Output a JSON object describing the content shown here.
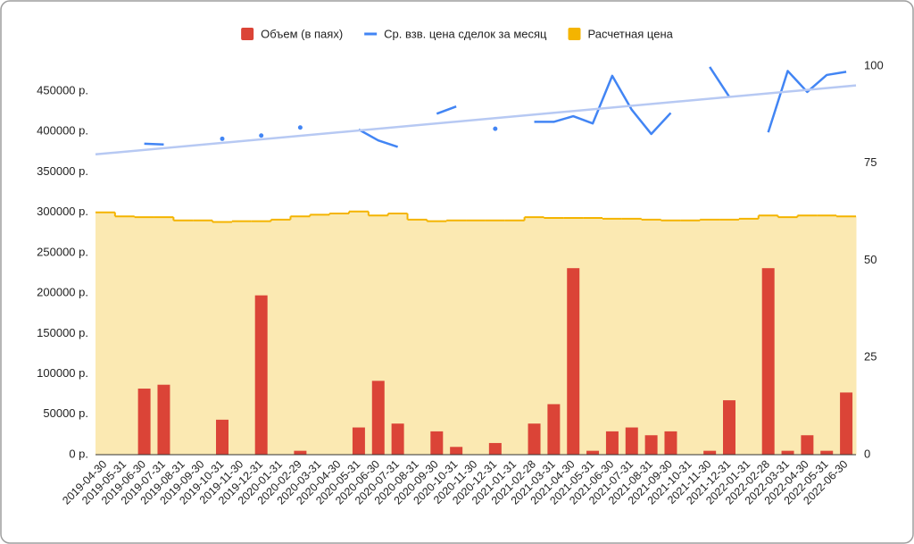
{
  "chart_data": {
    "type": "combo",
    "categories": [
      "2019-04-30",
      "2019-05-31",
      "2019-06-30",
      "2019-07-31",
      "2019-08-31",
      "2019-09-30",
      "2019-10-31",
      "2019-11-30",
      "2019-12-31",
      "2020-01-31",
      "2020-02-29",
      "2020-03-31",
      "2020-04-30",
      "2020-05-31",
      "2020-06-30",
      "2020-07-31",
      "2020-08-31",
      "2020-09-30",
      "2020-10-31",
      "2020-11-30",
      "2020-12-31",
      "2021-01-31",
      "2021-02-28",
      "2021-03-31",
      "2021-04-30",
      "2021-05-31",
      "2021-06-30",
      "2021-07-31",
      "2021-08-31",
      "2021-09-30",
      "2021-10-31",
      "2021-11-30",
      "2021-12-31",
      "2022-01-31",
      "2022-02-28",
      "2022-03-31",
      "2022-04-30",
      "2022-05-31",
      "2022-06-30"
    ],
    "series": [
      {
        "name": "Объем (в паях)",
        "type": "bar",
        "axis": "y2",
        "color": "#db4437",
        "values": [
          0,
          0,
          17,
          18,
          0,
          0,
          9,
          0,
          41,
          0,
          1,
          0,
          0,
          7,
          19,
          8,
          0,
          6,
          2,
          0,
          3,
          0,
          8,
          13,
          48,
          1,
          6,
          7,
          5,
          6,
          0,
          1,
          14,
          0,
          48,
          1,
          5,
          1,
          16
        ]
      },
      {
        "name": "Ср. взв. цена сделок за месяц",
        "type": "line",
        "color": "#4285f4",
        "trendline": true,
        "trendline_color": "#b7c9f3",
        "values": [
          null,
          null,
          385000,
          384000,
          null,
          null,
          391000,
          null,
          395000,
          null,
          405000,
          null,
          null,
          402500,
          389000,
          381000,
          null,
          422000,
          431000,
          null,
          403500,
          null,
          412000,
          412000,
          419000,
          410000,
          469000,
          427000,
          397000,
          423000,
          null,
          480000,
          443000,
          null,
          399000,
          475000,
          449000,
          470000,
          474000
        ]
      },
      {
        "name": "Расчетная цена",
        "type": "area",
        "color": "#f4b400",
        "fill": "#fbe9b2",
        "values": [
          300000,
          295000,
          294000,
          294000,
          290000,
          290000,
          288000,
          289000,
          289000,
          291000,
          295000,
          297000,
          298500,
          301000,
          296000,
          298500,
          291000,
          289000,
          290000,
          290000,
          290000,
          290000,
          294000,
          293000,
          293000,
          293000,
          292000,
          292000,
          291000,
          290000,
          290000,
          291000,
          291000,
          292000,
          296000,
          294000,
          296000,
          296000,
          295000
        ]
      }
    ],
    "ylim": [
      0,
      481000
    ],
    "yticks": [
      {
        "value": 0,
        "label": "0 р."
      },
      {
        "value": 50000,
        "label": "50000 р."
      },
      {
        "value": 100000,
        "label": "100000 р."
      },
      {
        "value": 150000,
        "label": "150000 р."
      },
      {
        "value": 200000,
        "label": "200000 р."
      },
      {
        "value": 250000,
        "label": "250000 р."
      },
      {
        "value": 300000,
        "label": "300000 р."
      },
      {
        "value": 350000,
        "label": "350000 р."
      },
      {
        "value": 400000,
        "label": "400000 р."
      },
      {
        "value": 450000,
        "label": "450000 р."
      }
    ],
    "y2lim": [
      0,
      100
    ],
    "y2ticks": [
      0,
      25,
      50,
      75,
      100
    ],
    "grid": false,
    "legend": "top"
  }
}
